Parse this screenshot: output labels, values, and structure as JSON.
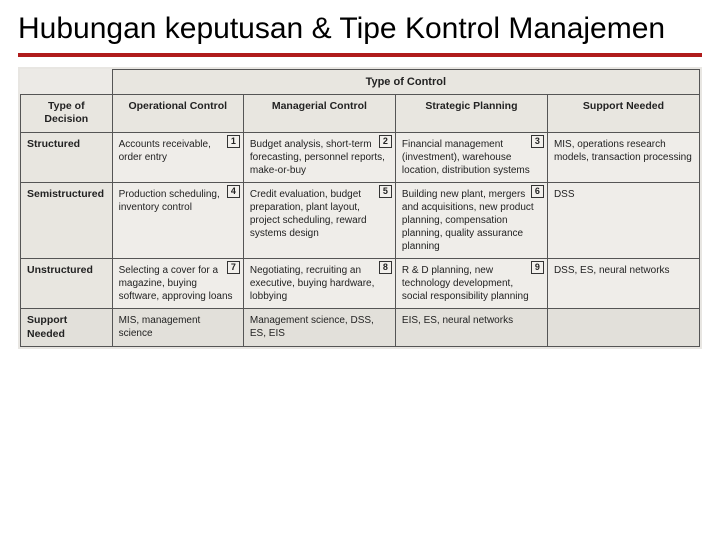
{
  "title": "Hubungan keputusan & Tipe Kontrol Manajemen",
  "table": {
    "top_header": "Type of Control",
    "row_header_label": "Type of Decision",
    "col_headers": [
      "Operational Control",
      "Managerial Control",
      "Strategic Planning",
      "Support Needed"
    ],
    "rows": [
      {
        "label": "Structured",
        "cells": [
          {
            "num": "1",
            "text": "Accounts receivable, order entry"
          },
          {
            "num": "2",
            "text": "Budget analysis, short-term forecasting, personnel reports, make-or-buy"
          },
          {
            "num": "3",
            "text": "Financial management (investment), warehouse location, distribution systems"
          },
          {
            "num": "",
            "text": "MIS, operations research models, transaction processing"
          }
        ]
      },
      {
        "label": "Semistructured",
        "cells": [
          {
            "num": "4",
            "text": "Production scheduling, inventory control"
          },
          {
            "num": "5",
            "text": "Credit evaluation, budget preparation, plant layout, project scheduling, reward systems design"
          },
          {
            "num": "6",
            "text": "Building new plant, mergers and acquisitions, new product planning, compensation planning, quality assurance planning"
          },
          {
            "num": "",
            "text": "DSS"
          }
        ]
      },
      {
        "label": "Unstructured",
        "cells": [
          {
            "num": "7",
            "text": "Selecting a cover for a magazine, buying software, approving loans"
          },
          {
            "num": "8",
            "text": "Negotiating, recruiting an executive, buying hardware, lobbying"
          },
          {
            "num": "9",
            "text": "R & D planning, new technology development, social responsibility planning"
          },
          {
            "num": "",
            "text": "DSS, ES, neural networks"
          }
        ]
      }
    ],
    "bottom": {
      "label": "Support Needed",
      "cells": [
        "MIS, management science",
        "Management science, DSS, ES, EIS",
        "EIS, ES, neural networks",
        ""
      ]
    }
  },
  "colors": {
    "red_bar": "#b01c1c",
    "table_bg": "#eceae6",
    "border": "#555555"
  }
}
